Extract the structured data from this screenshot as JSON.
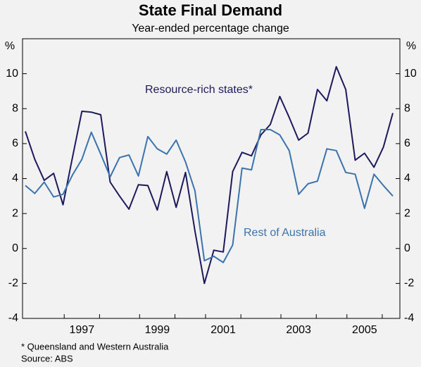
{
  "chart_data": {
    "type": "line",
    "title": "State Final Demand",
    "subtitle": "Year-ended percentage change",
    "y_unit_label": "%",
    "footnote": "*    Queensland and Western Australia",
    "source": "Source: ABS",
    "categories": [
      null,
      null,
      null,
      null,
      null,
      null,
      "1997",
      null,
      null,
      null,
      null,
      null,
      null,
      null,
      "1999",
      null,
      null,
      null,
      null,
      null,
      null,
      "2001",
      null,
      null,
      null,
      null,
      null,
      null,
      null,
      "2003",
      null,
      null,
      null,
      null,
      null,
      null,
      "2005",
      null,
      null,
      null
    ],
    "series": [
      {
        "name": "Resource-rich states*",
        "color": "#1c1a5c",
        "values": [
          6.7,
          5.1,
          3.9,
          4.3,
          2.5,
          5.2,
          7.85,
          7.8,
          7.65,
          3.8,
          3.0,
          2.25,
          3.65,
          3.6,
          2.2,
          4.4,
          2.35,
          4.35,
          1.0,
          -2.0,
          -0.1,
          -0.2,
          4.4,
          5.5,
          5.3,
          6.5,
          7.1,
          8.7,
          7.5,
          6.2,
          6.6,
          9.1,
          8.45,
          10.4,
          9.1,
          5.05,
          5.45,
          4.65,
          5.8,
          7.75
        ]
      },
      {
        "name": "Rest of Australia",
        "color": "#3a73ae",
        "values": [
          3.6,
          3.15,
          3.8,
          2.95,
          3.1,
          4.2,
          5.1,
          6.65,
          5.4,
          4.1,
          5.2,
          5.35,
          4.15,
          6.4,
          5.7,
          5.4,
          6.2,
          4.95,
          3.3,
          -0.7,
          -0.45,
          -0.8,
          0.2,
          4.6,
          4.5,
          6.8,
          6.8,
          6.5,
          5.6,
          3.1,
          3.7,
          3.85,
          5.7,
          5.6,
          4.35,
          4.25,
          2.3,
          4.25,
          3.6,
          3.0
        ]
      }
    ],
    "ylim": [
      -4,
      12
    ],
    "yticks": [
      -4,
      -2,
      0,
      2,
      4,
      6,
      8,
      10
    ]
  }
}
